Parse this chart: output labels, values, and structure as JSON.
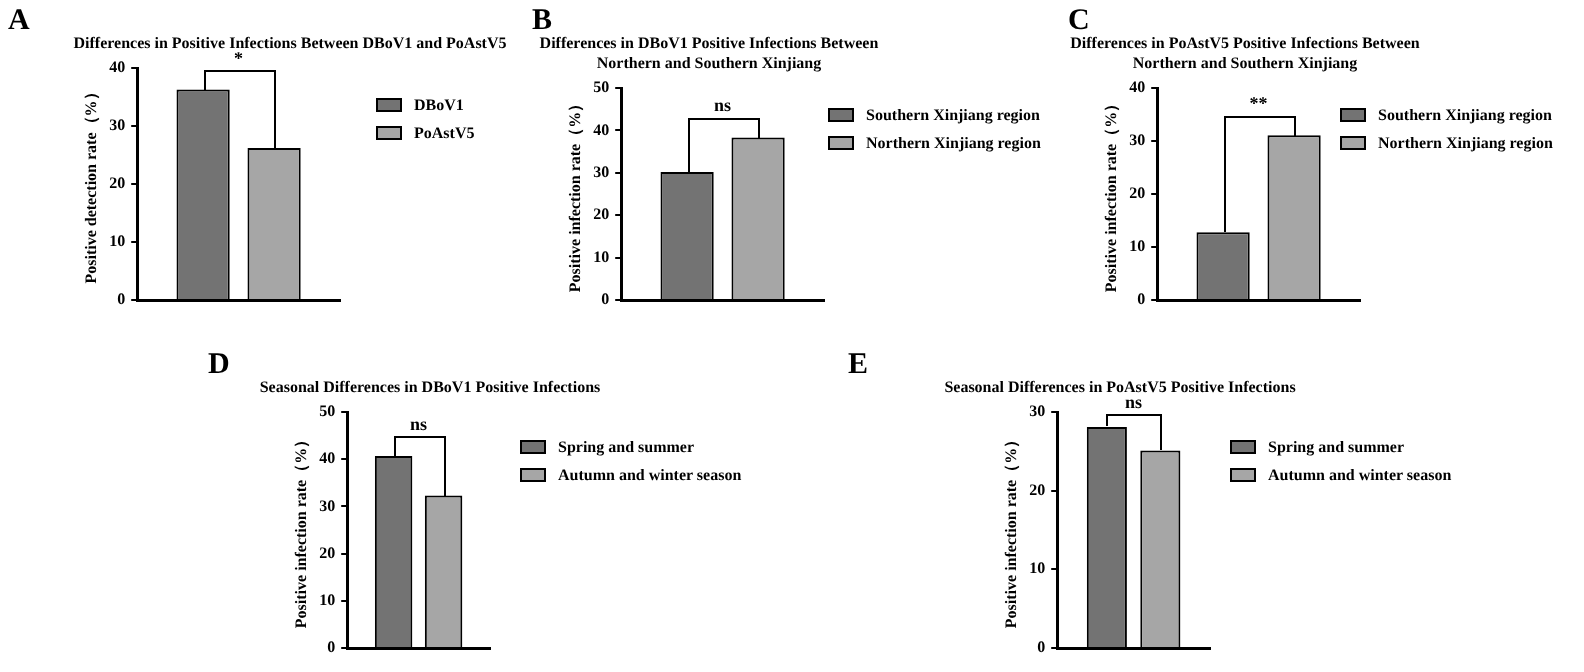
{
  "chart_data": [
    {
      "type": "bar",
      "title": "Differences in Positive Infections Between DBoV1 and PoAstV5",
      "ylabel": "Positive detection rate（%）",
      "categories": [
        null
      ],
      "series": [
        {
          "name": "DBoV1",
          "color": "#737373",
          "values": [
            36.3
          ]
        },
        {
          "name": "PoAstV5",
          "color": "#a6a6a6",
          "values": [
            26.2
          ]
        }
      ],
      "ylim": [
        0,
        40
      ],
      "yticks": [
        0,
        10,
        20,
        30,
        40
      ],
      "legend": "right",
      "tick_labels": "y",
      "annotations": [
        "A",
        "*"
      ]
    },
    {
      "type": "bar",
      "title": "Differences in DBoV1 Positive Infections Between Northern and Southern Xinjiang",
      "ylabel": "Positive infection rate（%）",
      "categories": [
        null
      ],
      "series": [
        {
          "name": "Southern Xinjiang region",
          "color": "#737373",
          "values": [
            30.2
          ]
        },
        {
          "name": "Northern Xinjiang region",
          "color": "#a6a6a6",
          "values": [
            38.3
          ]
        }
      ],
      "ylim": [
        0,
        50
      ],
      "yticks": [
        0,
        10,
        20,
        30,
        40,
        50
      ],
      "legend": "right",
      "tick_labels": "y",
      "annotations": [
        "B",
        "ns"
      ]
    },
    {
      "type": "bar",
      "title": "Differences in PoAstV5 Positive Infections Between Northern and Southern Xinjiang",
      "ylabel": "Positive infection rate（%）",
      "categories": [
        null
      ],
      "series": [
        {
          "name": "Southern Xinjiang region",
          "color": "#737373",
          "values": [
            12.8
          ]
        },
        {
          "name": "Northern Xinjiang region",
          "color": "#a6a6a6",
          "values": [
            31.1
          ]
        }
      ],
      "ylim": [
        0,
        40
      ],
      "yticks": [
        0,
        10,
        20,
        30,
        40
      ],
      "legend": "right",
      "tick_labels": "y",
      "annotations": [
        "C",
        "**"
      ]
    },
    {
      "type": "bar",
      "title": "Seasonal Differences in DBoV1 Positive Infections",
      "ylabel": "Positive infection rate（%）",
      "categories": [
        null
      ],
      "series": [
        {
          "name": "Spring and summer",
          "color": "#737373",
          "values": [
            40.7
          ]
        },
        {
          "name": "Autumn and winter season",
          "color": "#a6a6a6",
          "values": [
            32.3
          ]
        }
      ],
      "ylim": [
        0,
        50
      ],
      "yticks": [
        0,
        10,
        20,
        30,
        40,
        50
      ],
      "legend": "right",
      "tick_labels": "y",
      "annotations": [
        "D",
        "ns"
      ]
    },
    {
      "type": "bar",
      "title": "Seasonal Differences in PoAstV5 Positive Infections",
      "ylabel": "Positive infection rate（%）",
      "categories": [
        null
      ],
      "series": [
        {
          "name": "Spring and summer",
          "color": "#737373",
          "values": [
            28.1
          ]
        },
        {
          "name": "Autumn and winter season",
          "color": "#a6a6a6",
          "values": [
            25.1
          ]
        }
      ],
      "ylim": [
        0,
        30
      ],
      "yticks": [
        0,
        10,
        20,
        30
      ],
      "legend": "right",
      "tick_labels": "y",
      "annotations": [
        "E",
        "ns"
      ]
    }
  ]
}
